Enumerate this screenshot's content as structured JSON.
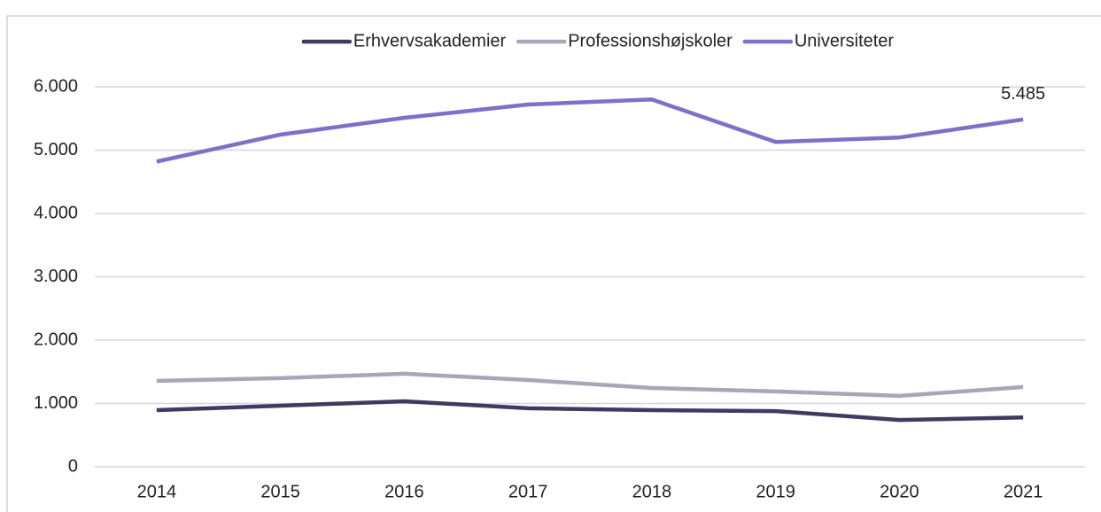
{
  "chart_data": {
    "type": "line",
    "categories": [
      "2014",
      "2015",
      "2016",
      "2017",
      "2018",
      "2019",
      "2020",
      "2021"
    ],
    "series": [
      {
        "name": "Erhvervsakademier",
        "color": "#3f3a60",
        "values": [
          895,
          965,
          1035,
          925,
          895,
          880,
          740,
          780
        ]
      },
      {
        "name": "Professionshøjskoler",
        "color": "#a9a6b8",
        "values": [
          1357,
          1400,
          1470,
          1370,
          1245,
          1190,
          1120,
          1260
        ]
      },
      {
        "name": "Universiteter",
        "color": "#7b72c8",
        "values": [
          4820,
          5245,
          5510,
          5720,
          5800,
          5130,
          5200,
          5485
        ],
        "value_labels": [
          null,
          null,
          null,
          null,
          null,
          null,
          null,
          "5.485"
        ]
      }
    ],
    "ylim": [
      0,
      6000
    ],
    "yticks": [
      0,
      {
        "value": 1000,
        "label": "1.000"
      },
      {
        "value": 2000,
        "label": "2.000"
      },
      {
        "value": 3000,
        "label": "3.000"
      },
      {
        "value": 4000,
        "label": "4.000"
      },
      {
        "value": 5000,
        "label": "5.000"
      },
      {
        "value": 6000,
        "label": "6.000"
      }
    ],
    "grid": true,
    "legend": "top"
  }
}
